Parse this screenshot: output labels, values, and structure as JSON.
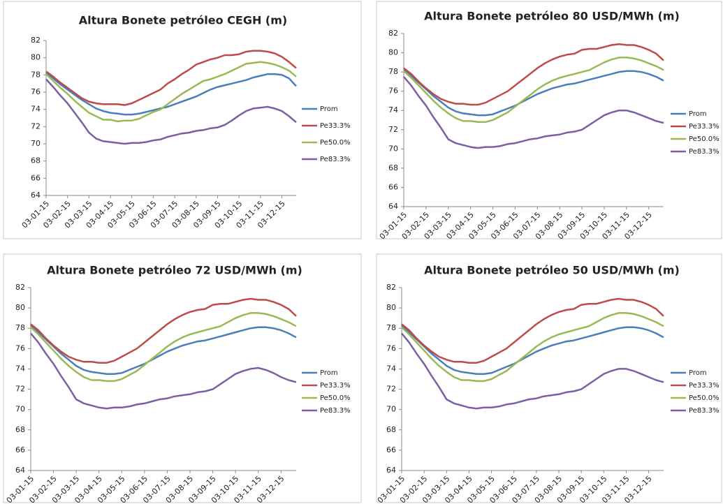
{
  "chart_data": [
    {
      "type": "line",
      "title": "Altura Bonete petróleo CEGH (m)",
      "categories": [
        "03-01-15",
        null,
        null,
        "03-02-15",
        null,
        null,
        "03-03-15",
        null,
        null,
        "03-04-15",
        null,
        null,
        "03-05-15",
        null,
        null,
        "03-06-15",
        null,
        null,
        "03-07-15",
        null,
        null,
        "03-08-15",
        null,
        null,
        "03-09-15",
        null,
        null,
        "03-10-15",
        null,
        null,
        "03-11-15",
        null,
        null,
        "03-12-15",
        null,
        null
      ],
      "ylim": [
        64,
        82
      ],
      "yticks": [
        64,
        66,
        68,
        70,
        72,
        74,
        76,
        78,
        80,
        82
      ],
      "legend": "right",
      "series": [
        {
          "name": "Prom",
          "color": "#4a7ebb",
          "values": [
            78.3,
            77.6,
            76.9,
            76.3,
            75.7,
            75.1,
            74.6,
            74.1,
            73.8,
            73.6,
            73.5,
            73.4,
            73.4,
            73.5,
            73.7,
            73.9,
            74.1,
            74.3,
            74.6,
            74.9,
            75.2,
            75.5,
            75.9,
            76.3,
            76.6,
            76.8,
            77.0,
            77.2,
            77.4,
            77.7,
            77.9,
            78.1,
            78.1,
            78.0,
            77.6,
            76.7
          ]
        },
        {
          "name": "Pe33.3%",
          "color": "#be4b48",
          "values": [
            78.4,
            77.8,
            77.1,
            76.5,
            75.9,
            75.3,
            74.9,
            74.7,
            74.6,
            74.6,
            74.6,
            74.5,
            74.7,
            75.1,
            75.5,
            75.9,
            76.3,
            77.0,
            77.5,
            78.1,
            78.6,
            79.2,
            79.5,
            79.8,
            80.0,
            80.3,
            80.3,
            80.4,
            80.7,
            80.8,
            80.8,
            80.7,
            80.5,
            80.1,
            79.5,
            78.8
          ]
        },
        {
          "name": "Pe50.0%",
          "color": "#98b954",
          "values": [
            78.1,
            77.3,
            76.5,
            75.8,
            75.0,
            74.3,
            73.6,
            73.2,
            72.8,
            72.8,
            72.6,
            72.7,
            72.7,
            72.9,
            73.3,
            73.7,
            74.0,
            74.6,
            75.2,
            75.8,
            76.3,
            76.8,
            77.3,
            77.5,
            77.8,
            78.1,
            78.5,
            78.9,
            79.3,
            79.4,
            79.5,
            79.4,
            79.2,
            78.9,
            78.5,
            77.8
          ]
        },
        {
          "name": "Pe83.3%",
          "color": "#7d5fa0",
          "values": [
            77.5,
            76.6,
            75.6,
            74.7,
            73.6,
            72.5,
            71.3,
            70.6,
            70.3,
            70.2,
            70.1,
            70.0,
            70.1,
            70.1,
            70.2,
            70.4,
            70.5,
            70.8,
            71.0,
            71.2,
            71.3,
            71.5,
            71.6,
            71.8,
            71.9,
            72.2,
            72.7,
            73.3,
            73.8,
            74.1,
            74.2,
            74.3,
            74.1,
            73.8,
            73.2,
            72.5
          ]
        }
      ]
    },
    {
      "type": "line",
      "title": "Altura Bonete petróleo 80 USD/MWh (m)",
      "categories": [
        "03-01-15",
        null,
        null,
        "03-02-15",
        null,
        null,
        "03-03-15",
        null,
        null,
        "03-04-15",
        null,
        null,
        "03-05-15",
        null,
        null,
        "03-06-15",
        null,
        null,
        "03-07-15",
        null,
        null,
        "03-08-15",
        null,
        null,
        "03-09-15",
        null,
        null,
        "03-10-15",
        null,
        null,
        "03-11-15",
        null,
        null,
        "03-12-15",
        null,
        null
      ],
      "ylim": [
        64,
        82
      ],
      "yticks": [
        64,
        66,
        68,
        70,
        72,
        74,
        76,
        78,
        80,
        82
      ],
      "legend": "right",
      "series": [
        {
          "name": "Prom",
          "color": "#4a7ebb",
          "values": [
            78.3,
            77.6,
            76.9,
            76.2,
            75.5,
            74.9,
            74.3,
            73.9,
            73.7,
            73.6,
            73.5,
            73.5,
            73.6,
            73.9,
            74.2,
            74.5,
            74.9,
            75.3,
            75.7,
            76.0,
            76.3,
            76.5,
            76.7,
            76.8,
            77.0,
            77.2,
            77.4,
            77.6,
            77.8,
            78.0,
            78.1,
            78.1,
            78.0,
            77.8,
            77.5,
            77.1
          ]
        },
        {
          "name": "Pe33.3%",
          "color": "#be4b48",
          "values": [
            78.4,
            77.8,
            77.0,
            76.3,
            75.7,
            75.2,
            74.9,
            74.7,
            74.7,
            74.6,
            74.6,
            74.8,
            75.2,
            75.6,
            76.0,
            76.6,
            77.2,
            77.8,
            78.4,
            78.9,
            79.3,
            79.6,
            79.8,
            79.9,
            80.3,
            80.4,
            80.4,
            80.6,
            80.8,
            80.9,
            80.8,
            80.8,
            80.6,
            80.3,
            79.9,
            79.2
          ]
        },
        {
          "name": "Pe50.0%",
          "color": "#98b954",
          "values": [
            78.1,
            77.4,
            76.6,
            75.8,
            75.0,
            74.3,
            73.7,
            73.2,
            72.9,
            72.9,
            72.8,
            72.8,
            73.0,
            73.4,
            73.8,
            74.4,
            75.0,
            75.6,
            76.2,
            76.7,
            77.1,
            77.4,
            77.6,
            77.8,
            78.0,
            78.2,
            78.6,
            79.0,
            79.3,
            79.5,
            79.5,
            79.4,
            79.2,
            78.9,
            78.6,
            78.2
          ]
        },
        {
          "name": "Pe83.3%",
          "color": "#7d5fa0",
          "values": [
            77.5,
            76.6,
            75.5,
            74.5,
            73.3,
            72.2,
            71.0,
            70.6,
            70.4,
            70.2,
            70.1,
            70.2,
            70.2,
            70.3,
            70.5,
            70.6,
            70.8,
            71.0,
            71.1,
            71.3,
            71.4,
            71.5,
            71.7,
            71.8,
            72.0,
            72.5,
            73.0,
            73.5,
            73.8,
            74.0,
            74.0,
            73.8,
            73.5,
            73.2,
            72.9,
            72.7
          ]
        }
      ]
    },
    {
      "type": "line",
      "title": "Altura Bonete petróleo 72 USD/MWh (m)",
      "categories": [
        "03-01-15",
        null,
        null,
        "03-02-15",
        null,
        null,
        "03-03-15",
        null,
        null,
        "03-04-15",
        null,
        null,
        "03-05-15",
        null,
        null,
        "03-06-15",
        null,
        null,
        "03-07-15",
        null,
        null,
        "03-08-15",
        null,
        null,
        "03-09-15",
        null,
        null,
        "03-10-15",
        null,
        null,
        "03-11-15",
        null,
        null,
        "03-12-15",
        null,
        null
      ],
      "ylim": [
        64,
        82
      ],
      "yticks": [
        64,
        66,
        68,
        70,
        72,
        74,
        76,
        78,
        80,
        82
      ],
      "legend": "right",
      "series": [
        {
          "name": "Prom",
          "color": "#4a7ebb",
          "values": [
            78.3,
            77.6,
            76.9,
            76.2,
            75.5,
            74.9,
            74.3,
            73.9,
            73.7,
            73.6,
            73.5,
            73.5,
            73.6,
            73.9,
            74.2,
            74.5,
            74.9,
            75.3,
            75.7,
            76.0,
            76.3,
            76.5,
            76.7,
            76.8,
            77.0,
            77.2,
            77.4,
            77.6,
            77.8,
            78.0,
            78.1,
            78.1,
            78.0,
            77.8,
            77.5,
            77.1
          ]
        },
        {
          "name": "Pe33.3%",
          "color": "#be4b48",
          "values": [
            78.4,
            77.8,
            77.0,
            76.3,
            75.7,
            75.2,
            74.9,
            74.7,
            74.7,
            74.6,
            74.6,
            74.8,
            75.2,
            75.6,
            76.0,
            76.6,
            77.2,
            77.8,
            78.4,
            78.9,
            79.3,
            79.6,
            79.8,
            79.9,
            80.3,
            80.4,
            80.4,
            80.6,
            80.8,
            80.9,
            80.8,
            80.8,
            80.6,
            80.3,
            79.9,
            79.2
          ]
        },
        {
          "name": "Pe50.0%",
          "color": "#98b954",
          "values": [
            78.1,
            77.4,
            76.6,
            75.8,
            75.0,
            74.3,
            73.7,
            73.2,
            72.9,
            72.9,
            72.8,
            72.8,
            73.0,
            73.4,
            73.8,
            74.4,
            75.0,
            75.6,
            76.2,
            76.7,
            77.1,
            77.4,
            77.6,
            77.8,
            78.0,
            78.2,
            78.6,
            79.0,
            79.3,
            79.5,
            79.5,
            79.4,
            79.2,
            78.9,
            78.6,
            78.2
          ]
        },
        {
          "name": "Pe83.3%",
          "color": "#7d5fa0",
          "values": [
            77.5,
            76.6,
            75.5,
            74.5,
            73.3,
            72.2,
            71.0,
            70.6,
            70.4,
            70.2,
            70.1,
            70.2,
            70.2,
            70.3,
            70.5,
            70.6,
            70.8,
            71.0,
            71.1,
            71.3,
            71.4,
            71.5,
            71.7,
            71.8,
            72.0,
            72.5,
            73.0,
            73.5,
            73.8,
            74.0,
            74.1,
            73.9,
            73.6,
            73.2,
            72.9,
            72.7
          ]
        }
      ]
    },
    {
      "type": "line",
      "title": "Altura Bonete petróleo 50 USD/MWh (m)",
      "categories": [
        "03-01-15",
        null,
        null,
        "03-02-15",
        null,
        null,
        "03-03-15",
        null,
        null,
        "03-04-15",
        null,
        null,
        "03-05-15",
        null,
        null,
        "03-06-15",
        null,
        null,
        "03-07-15",
        null,
        null,
        "03-08-15",
        null,
        null,
        "03-09-15",
        null,
        null,
        "03-10-15",
        null,
        null,
        "03-11-15",
        null,
        null,
        "03-12-15",
        null,
        null
      ],
      "ylim": [
        64,
        82
      ],
      "yticks": [
        64,
        66,
        68,
        70,
        72,
        74,
        76,
        78,
        80,
        82
      ],
      "legend": "right",
      "series": [
        {
          "name": "Prom",
          "color": "#4a7ebb",
          "values": [
            78.3,
            77.6,
            76.9,
            76.2,
            75.5,
            74.9,
            74.3,
            73.9,
            73.7,
            73.6,
            73.5,
            73.5,
            73.6,
            73.9,
            74.2,
            74.5,
            74.9,
            75.3,
            75.7,
            76.0,
            76.3,
            76.5,
            76.7,
            76.8,
            77.0,
            77.2,
            77.4,
            77.6,
            77.8,
            78.0,
            78.1,
            78.1,
            78.0,
            77.8,
            77.5,
            77.1
          ]
        },
        {
          "name": "Pe33.3%",
          "color": "#be4b48",
          "values": [
            78.4,
            77.8,
            77.0,
            76.3,
            75.7,
            75.2,
            74.9,
            74.7,
            74.7,
            74.6,
            74.6,
            74.8,
            75.2,
            75.6,
            76.0,
            76.6,
            77.2,
            77.8,
            78.4,
            78.9,
            79.3,
            79.6,
            79.8,
            79.9,
            80.3,
            80.4,
            80.4,
            80.6,
            80.8,
            80.9,
            80.8,
            80.8,
            80.6,
            80.3,
            79.9,
            79.2
          ]
        },
        {
          "name": "Pe50.0%",
          "color": "#98b954",
          "values": [
            78.1,
            77.4,
            76.6,
            75.8,
            75.0,
            74.3,
            73.7,
            73.2,
            72.9,
            72.9,
            72.8,
            72.8,
            73.0,
            73.4,
            73.8,
            74.4,
            75.0,
            75.6,
            76.2,
            76.7,
            77.1,
            77.4,
            77.6,
            77.8,
            78.0,
            78.2,
            78.6,
            79.0,
            79.3,
            79.5,
            79.5,
            79.4,
            79.2,
            78.9,
            78.6,
            78.2
          ]
        },
        {
          "name": "Pe83.3%",
          "color": "#7d5fa0",
          "values": [
            77.5,
            76.6,
            75.5,
            74.5,
            73.3,
            72.2,
            71.0,
            70.6,
            70.4,
            70.2,
            70.1,
            70.2,
            70.2,
            70.3,
            70.5,
            70.6,
            70.8,
            71.0,
            71.1,
            71.3,
            71.4,
            71.5,
            71.7,
            71.8,
            72.0,
            72.5,
            73.0,
            73.5,
            73.8,
            74.0,
            74.0,
            73.8,
            73.5,
            73.2,
            72.9,
            72.7
          ]
        }
      ]
    }
  ]
}
